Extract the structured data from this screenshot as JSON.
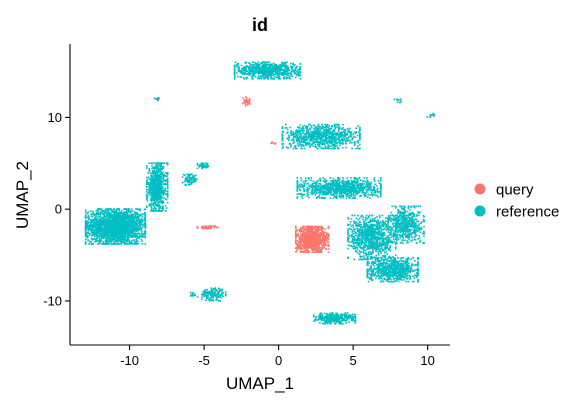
{
  "chart_data": {
    "type": "scatter",
    "title": "id",
    "xlabel": "UMAP_1",
    "ylabel": "UMAP_2",
    "xlim": [
      -14,
      11.5
    ],
    "ylim": [
      -14.8,
      18
    ],
    "x_ticks": [
      -10,
      -5,
      0,
      5,
      10
    ],
    "y_ticks": [
      -10,
      0,
      10
    ],
    "x_tick_labels": [
      "-10",
      "-5",
      "0",
      "5",
      "10"
    ],
    "y_tick_labels": [
      "-10",
      "0",
      "10"
    ],
    "grid": false,
    "legend_position": "right",
    "series": [
      {
        "name": "query",
        "color": "#F8766D",
        "clusters": [
          {
            "center": [
              2.2,
              -3.2
            ],
            "spread": [
              1.1,
              1.4
            ],
            "points": 900
          },
          {
            "center": [
              -4.8,
              -1.9
            ],
            "spread": [
              0.7,
              0.15
            ],
            "points": 60
          },
          {
            "center": [
              -2.2,
              11.8
            ],
            "spread": [
              0.3,
              0.5
            ],
            "points": 40
          },
          {
            "center": [
              -0.4,
              7.3
            ],
            "spread": [
              0.15,
              0.15
            ],
            "points": 8
          }
        ]
      },
      {
        "name": "reference",
        "color": "#00BFC4",
        "clusters": [
          {
            "center": [
              -11.0,
              -1.8
            ],
            "spread": [
              2.0,
              1.9
            ],
            "points": 2200
          },
          {
            "center": [
              -8.2,
              2.5
            ],
            "spread": [
              0.7,
              2.6
            ],
            "points": 700
          },
          {
            "center": [
              -5.1,
              4.8
            ],
            "spread": [
              0.4,
              0.3
            ],
            "points": 60
          },
          {
            "center": [
              -6.0,
              3.3
            ],
            "spread": [
              0.5,
              0.6
            ],
            "points": 80
          },
          {
            "center": [
              -0.8,
              15.2
            ],
            "spread": [
              2.2,
              0.9
            ],
            "points": 700
          },
          {
            "center": [
              2.8,
              8.0
            ],
            "spread": [
              2.6,
              1.3
            ],
            "points": 800
          },
          {
            "center": [
              4.0,
              2.4
            ],
            "spread": [
              2.8,
              1.1
            ],
            "points": 900
          },
          {
            "center": [
              6.2,
              -3.0
            ],
            "spread": [
              1.6,
              2.4
            ],
            "points": 900
          },
          {
            "center": [
              7.6,
              -6.5
            ],
            "spread": [
              1.7,
              1.3
            ],
            "points": 700
          },
          {
            "center": [
              8.5,
              -1.6
            ],
            "spread": [
              1.2,
              2.0
            ],
            "points": 500
          },
          {
            "center": [
              -4.4,
              -9.2
            ],
            "spread": [
              0.8,
              0.7
            ],
            "points": 150
          },
          {
            "center": [
              3.7,
              -11.8
            ],
            "spread": [
              1.4,
              0.6
            ],
            "points": 300
          },
          {
            "center": [
              -8.2,
              12.1
            ],
            "spread": [
              0.2,
              0.2
            ],
            "points": 8
          },
          {
            "center": [
              8.0,
              12.0
            ],
            "spread": [
              0.3,
              0.3
            ],
            "points": 10
          },
          {
            "center": [
              10.2,
              10.3
            ],
            "spread": [
              0.3,
              0.2
            ],
            "points": 10
          },
          {
            "center": [
              -5.8,
              -9.3
            ],
            "spread": [
              0.3,
              0.3
            ],
            "points": 12
          }
        ]
      }
    ]
  }
}
